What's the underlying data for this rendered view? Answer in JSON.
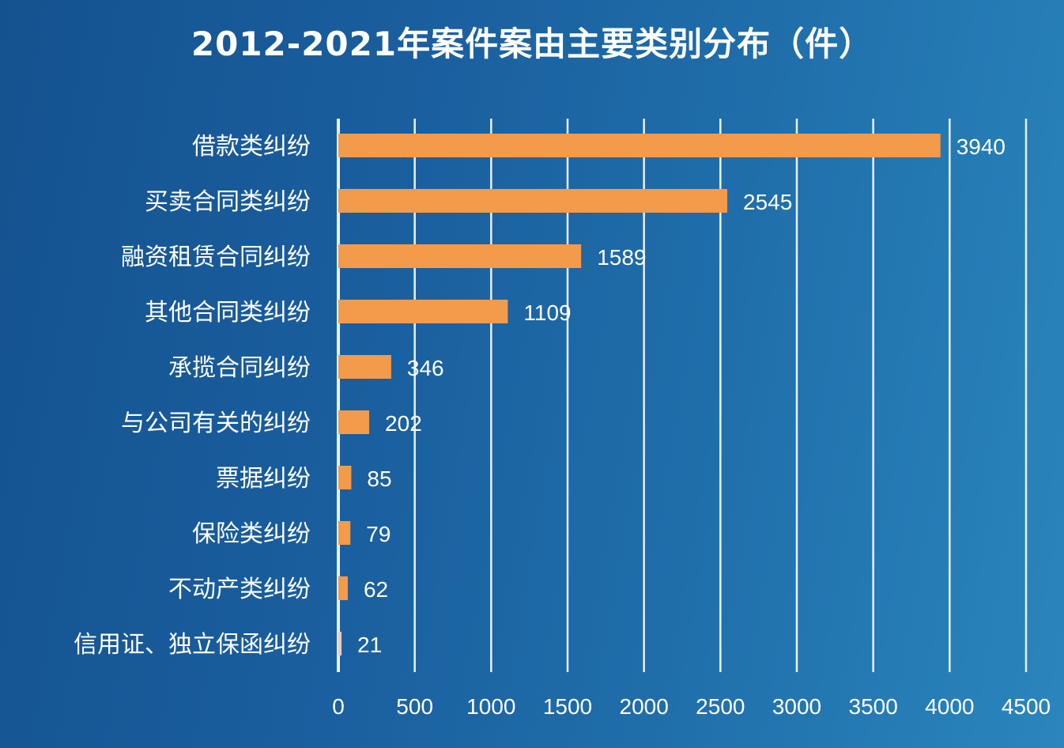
{
  "chart_data": {
    "type": "bar",
    "orientation": "horizontal",
    "title": "2012-2021年案件案由主要类别分布（件）",
    "categories": [
      "借款类纠纷",
      "买卖合同类纠纷",
      "融资租赁合同纠纷",
      "其他合同类纠纷",
      "承揽合同纠纷",
      "与公司有关的纠纷",
      "票据纠纷",
      "保险类纠纷",
      "不动产类纠纷",
      "信用证、独立保函纠纷"
    ],
    "values": [
      3940,
      2545,
      1589,
      1109,
      346,
      202,
      85,
      79,
      62,
      21
    ],
    "xlim": [
      0,
      4500
    ],
    "xticks": [
      0,
      500,
      1000,
      1500,
      2000,
      2500,
      3000,
      3500,
      4000,
      4500
    ],
    "grid": true,
    "colors": {
      "bar": "#f39a4b",
      "text": "#ffffff",
      "grid": "#e8f0f8"
    }
  }
}
